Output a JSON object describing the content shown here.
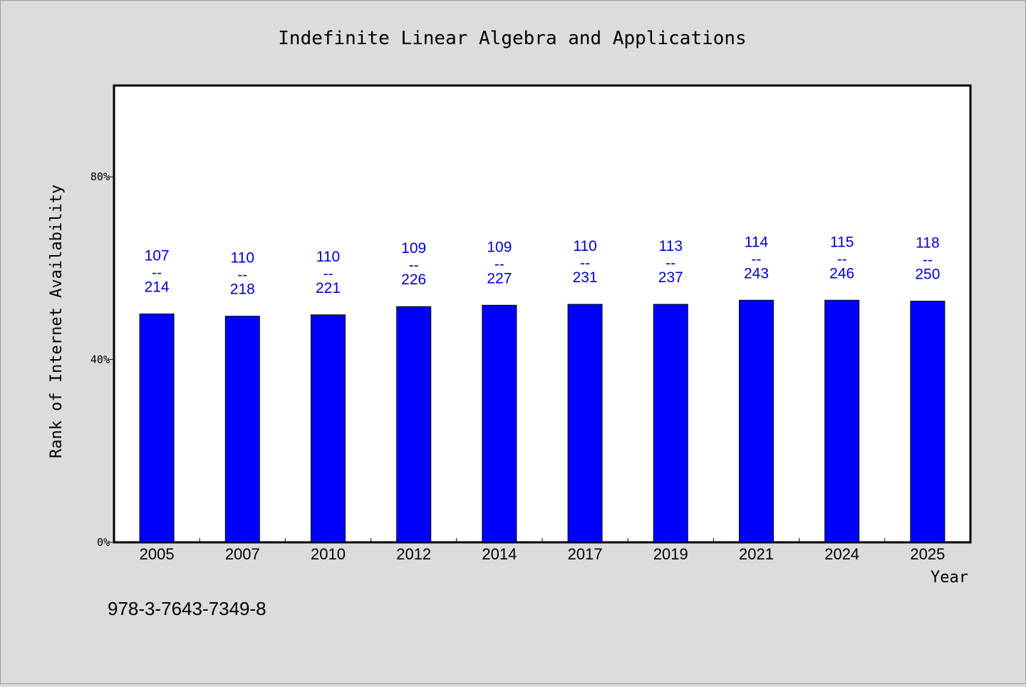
{
  "chart_data": {
    "type": "bar",
    "title": "Indefinite Linear Algebra and Applications",
    "xlabel": "Year",
    "ylabel": "Rank of Internet Availability",
    "categories": [
      "2005",
      "2007",
      "2010",
      "2012",
      "2014",
      "2017",
      "2019",
      "2021",
      "2024",
      "2025"
    ],
    "values": [
      50.0,
      49.5,
      49.8,
      51.6,
      51.9,
      52.1,
      52.1,
      53.0,
      53.0,
      52.8
    ],
    "bar_labels": [
      {
        "top": "107",
        "sep": "--",
        "bottom": "214"
      },
      {
        "top": "110",
        "sep": "--",
        "bottom": "218"
      },
      {
        "top": "110",
        "sep": "--",
        "bottom": "221"
      },
      {
        "top": "109",
        "sep": "--",
        "bottom": "226"
      },
      {
        "top": "109",
        "sep": "--",
        "bottom": "227"
      },
      {
        "top": "110",
        "sep": "--",
        "bottom": "231"
      },
      {
        "top": "113",
        "sep": "--",
        "bottom": "237"
      },
      {
        "top": "114",
        "sep": "--",
        "bottom": "243"
      },
      {
        "top": "115",
        "sep": "--",
        "bottom": "246"
      },
      {
        "top": "118",
        "sep": "--",
        "bottom": "250"
      }
    ],
    "ylim": [
      0,
      100
    ],
    "yticks": [
      0,
      40,
      80
    ],
    "ytick_labels": [
      "0%",
      "40%",
      "80%"
    ],
    "grid": false,
    "bar_color": "#0000ff",
    "label_color": "#0000cc"
  },
  "footer_text": "978-3-7643-7349-8"
}
